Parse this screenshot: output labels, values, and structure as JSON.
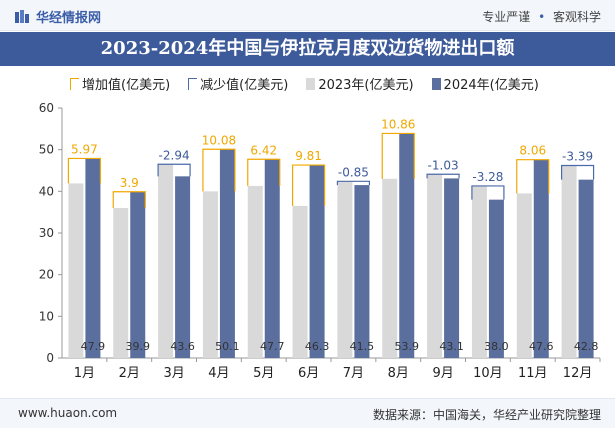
{
  "header": {
    "logo_text": "华经情报网",
    "tagline_a": "专业严谨",
    "tagline_b": "客观科学"
  },
  "footer": {
    "url": "www.huaon.com",
    "source": "数据来源：中国海关，华经产业研究院整理"
  },
  "colors": {
    "increase": "#f0a800",
    "decrease": "#4a6aa8",
    "y2023": "#d9d9d9",
    "y2024": "#5a6f9e",
    "label_increase": "#f0a800",
    "label_decrease": "#3d5a9a"
  },
  "chart_data": {
    "type": "bar",
    "title": "2023-2024年中国与伊拉克月度双边货物进出口额",
    "legend": [
      "增加值(亿美元)",
      "减少值(亿美元)",
      "2023年(亿美元)",
      "2024年(亿美元)"
    ],
    "categories": [
      "1月",
      "2月",
      "3月",
      "4月",
      "5月",
      "6月",
      "7月",
      "8月",
      "9月",
      "10月",
      "11月",
      "12月"
    ],
    "series": [
      {
        "name": "2023年(亿美元)",
        "values": [
          41.9,
          36.0,
          46.5,
          40.0,
          41.3,
          36.5,
          42.4,
          43.0,
          44.1,
          41.3,
          39.5,
          46.2
        ]
      },
      {
        "name": "2024年(亿美元)",
        "values": [
          47.9,
          39.9,
          43.6,
          50.1,
          47.7,
          46.3,
          41.5,
          53.9,
          43.1,
          38.0,
          47.6,
          42.8
        ]
      }
    ],
    "diff": [
      5.97,
      3.9,
      -2.94,
      10.08,
      6.42,
      9.81,
      -0.85,
      10.86,
      -1.03,
      -3.28,
      8.06,
      -3.39
    ],
    "diff_labels": [
      "5.97",
      "3.9",
      "-2.94",
      "10.08",
      "6.42",
      "9.81",
      "-0.85",
      "10.86",
      "-1.03",
      "-3.28",
      "8.06",
      "-3.39"
    ],
    "value_labels_2024": [
      "47.9",
      "39.9",
      "43.6",
      "50.1",
      "47.7",
      "46.3",
      "41.5",
      "53.9",
      "43.1",
      "38.0",
      "47.6",
      "42.8"
    ],
    "ylim": [
      0,
      60
    ],
    "yticks": [
      0,
      10,
      20,
      30,
      40,
      50,
      60
    ],
    "ytick_labels": [
      "0",
      "10",
      "20",
      "30",
      "40",
      "50",
      "60"
    ],
    "grid": false
  }
}
